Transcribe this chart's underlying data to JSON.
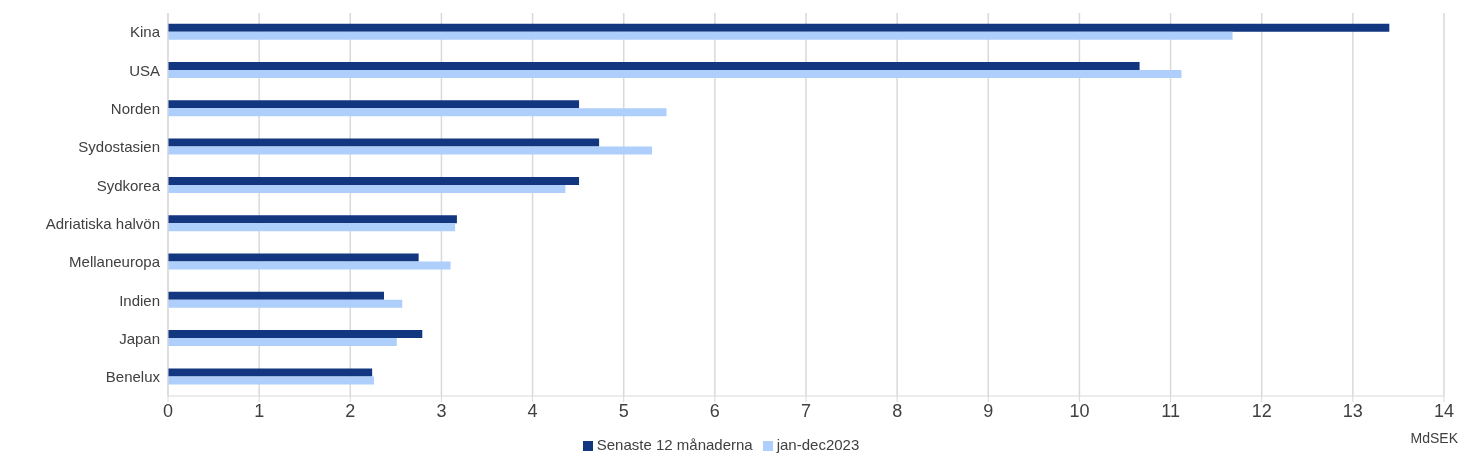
{
  "chart_data": {
    "type": "bar",
    "orientation": "horizontal",
    "xlabel": "MdSEK",
    "categories": [
      "Kina",
      "USA",
      "Norden",
      "Sydostasien",
      "Sydkorea",
      "Adriatiska halvön",
      "Mellaneuropa",
      "Indien",
      "Japan",
      "Benelux"
    ],
    "series": [
      {
        "name": "Senaste 12 månaderna",
        "color": "#12367f",
        "values": [
          13.4,
          10.66,
          4.51,
          4.73,
          4.51,
          3.17,
          2.75,
          2.37,
          2.79,
          2.24
        ]
      },
      {
        "name": "jan-dec2023",
        "color": "#aecffb",
        "values": [
          11.68,
          11.12,
          5.47,
          5.31,
          4.36,
          3.15,
          3.1,
          2.57,
          2.51,
          2.26
        ]
      }
    ],
    "xlim": [
      0,
      14
    ],
    "xticks": [
      0,
      1,
      2,
      3,
      4,
      5,
      6,
      7,
      8,
      9,
      10,
      11,
      12,
      13,
      14
    ],
    "grid": "x",
    "legend": "bottom"
  }
}
